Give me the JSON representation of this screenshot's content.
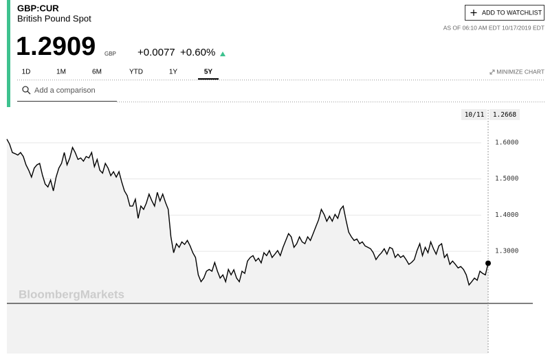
{
  "header": {
    "ticker": "GBP:CUR",
    "name": "British Pound Spot",
    "price": "1.2909",
    "currency": "GBP",
    "change": "+0.0077",
    "change_pct": "+0.60%",
    "watchlist_button": "ADD TO WATCHLIST",
    "as_of": "AS OF 06:10 AM EDT 10/17/2019 EDT"
  },
  "tabs": [
    "1D",
    "1M",
    "6M",
    "YTD",
    "1Y",
    "5Y"
  ],
  "active_tab": 5,
  "minimize": "MINIMIZE CHART",
  "search_placeholder": "Add a comparison",
  "watermark": "BloombergMarkets",
  "chart_data": {
    "type": "line",
    "color": "#000000",
    "values": [
      1.61,
      1.596,
      1.573,
      1.57,
      1.566,
      1.573,
      1.562,
      1.539,
      1.524,
      1.505,
      1.53,
      1.539,
      1.543,
      1.511,
      1.486,
      1.478,
      1.497,
      1.467,
      1.505,
      1.53,
      1.543,
      1.573,
      1.539,
      1.558,
      1.587,
      1.573,
      1.554,
      1.558,
      1.549,
      1.562,
      1.558,
      1.573,
      1.534,
      1.554,
      1.524,
      1.516,
      1.543,
      1.53,
      1.509,
      1.52,
      1.505,
      1.52,
      1.492,
      1.467,
      1.454,
      1.425,
      1.425,
      1.444,
      1.391,
      1.425,
      1.416,
      1.433,
      1.458,
      1.44,
      1.425,
      1.463,
      1.439,
      1.458,
      1.435,
      1.416,
      1.34,
      1.296,
      1.321,
      1.311,
      1.326,
      1.319,
      1.33,
      1.315,
      1.296,
      1.283,
      1.235,
      1.216,
      1.226,
      1.245,
      1.25,
      1.245,
      1.269,
      1.245,
      1.226,
      1.235,
      1.216,
      1.25,
      1.235,
      1.249,
      1.226,
      1.216,
      1.245,
      1.239,
      1.273,
      1.283,
      1.288,
      1.273,
      1.281,
      1.268,
      1.296,
      1.288,
      1.302,
      1.283,
      1.292,
      1.302,
      1.288,
      1.311,
      1.33,
      1.349,
      1.34,
      1.311,
      1.321,
      1.34,
      1.326,
      1.321,
      1.34,
      1.33,
      1.349,
      1.368,
      1.387,
      1.416,
      1.402,
      1.383,
      1.397,
      1.383,
      1.402,
      1.391,
      1.416,
      1.425,
      1.387,
      1.353,
      1.34,
      1.33,
      1.334,
      1.321,
      1.326,
      1.315,
      1.311,
      1.307,
      1.296,
      1.277,
      1.288,
      1.296,
      1.307,
      1.292,
      1.311,
      1.307,
      1.283,
      1.292,
      1.283,
      1.288,
      1.277,
      1.264,
      1.269,
      1.277,
      1.302,
      1.321,
      1.288,
      1.311,
      1.296,
      1.326,
      1.307,
      1.292,
      1.315,
      1.321,
      1.283,
      1.292,
      1.264,
      1.273,
      1.264,
      1.254,
      1.258,
      1.25,
      1.235,
      1.207,
      1.216,
      1.226,
      1.22,
      1.245,
      1.239,
      1.235,
      1.267
    ],
    "ylim": [
      1.156,
      1.691
    ],
    "yticks": [
      {
        "value": 1.3,
        "label": "1.3000"
      },
      {
        "value": 1.4,
        "label": "1.4000"
      },
      {
        "value": 1.5,
        "label": "1.5000"
      },
      {
        "value": 1.6,
        "label": "1.6000"
      }
    ],
    "grid": true,
    "crosshair": {
      "date": "10/11",
      "value": 1.2668
    }
  }
}
